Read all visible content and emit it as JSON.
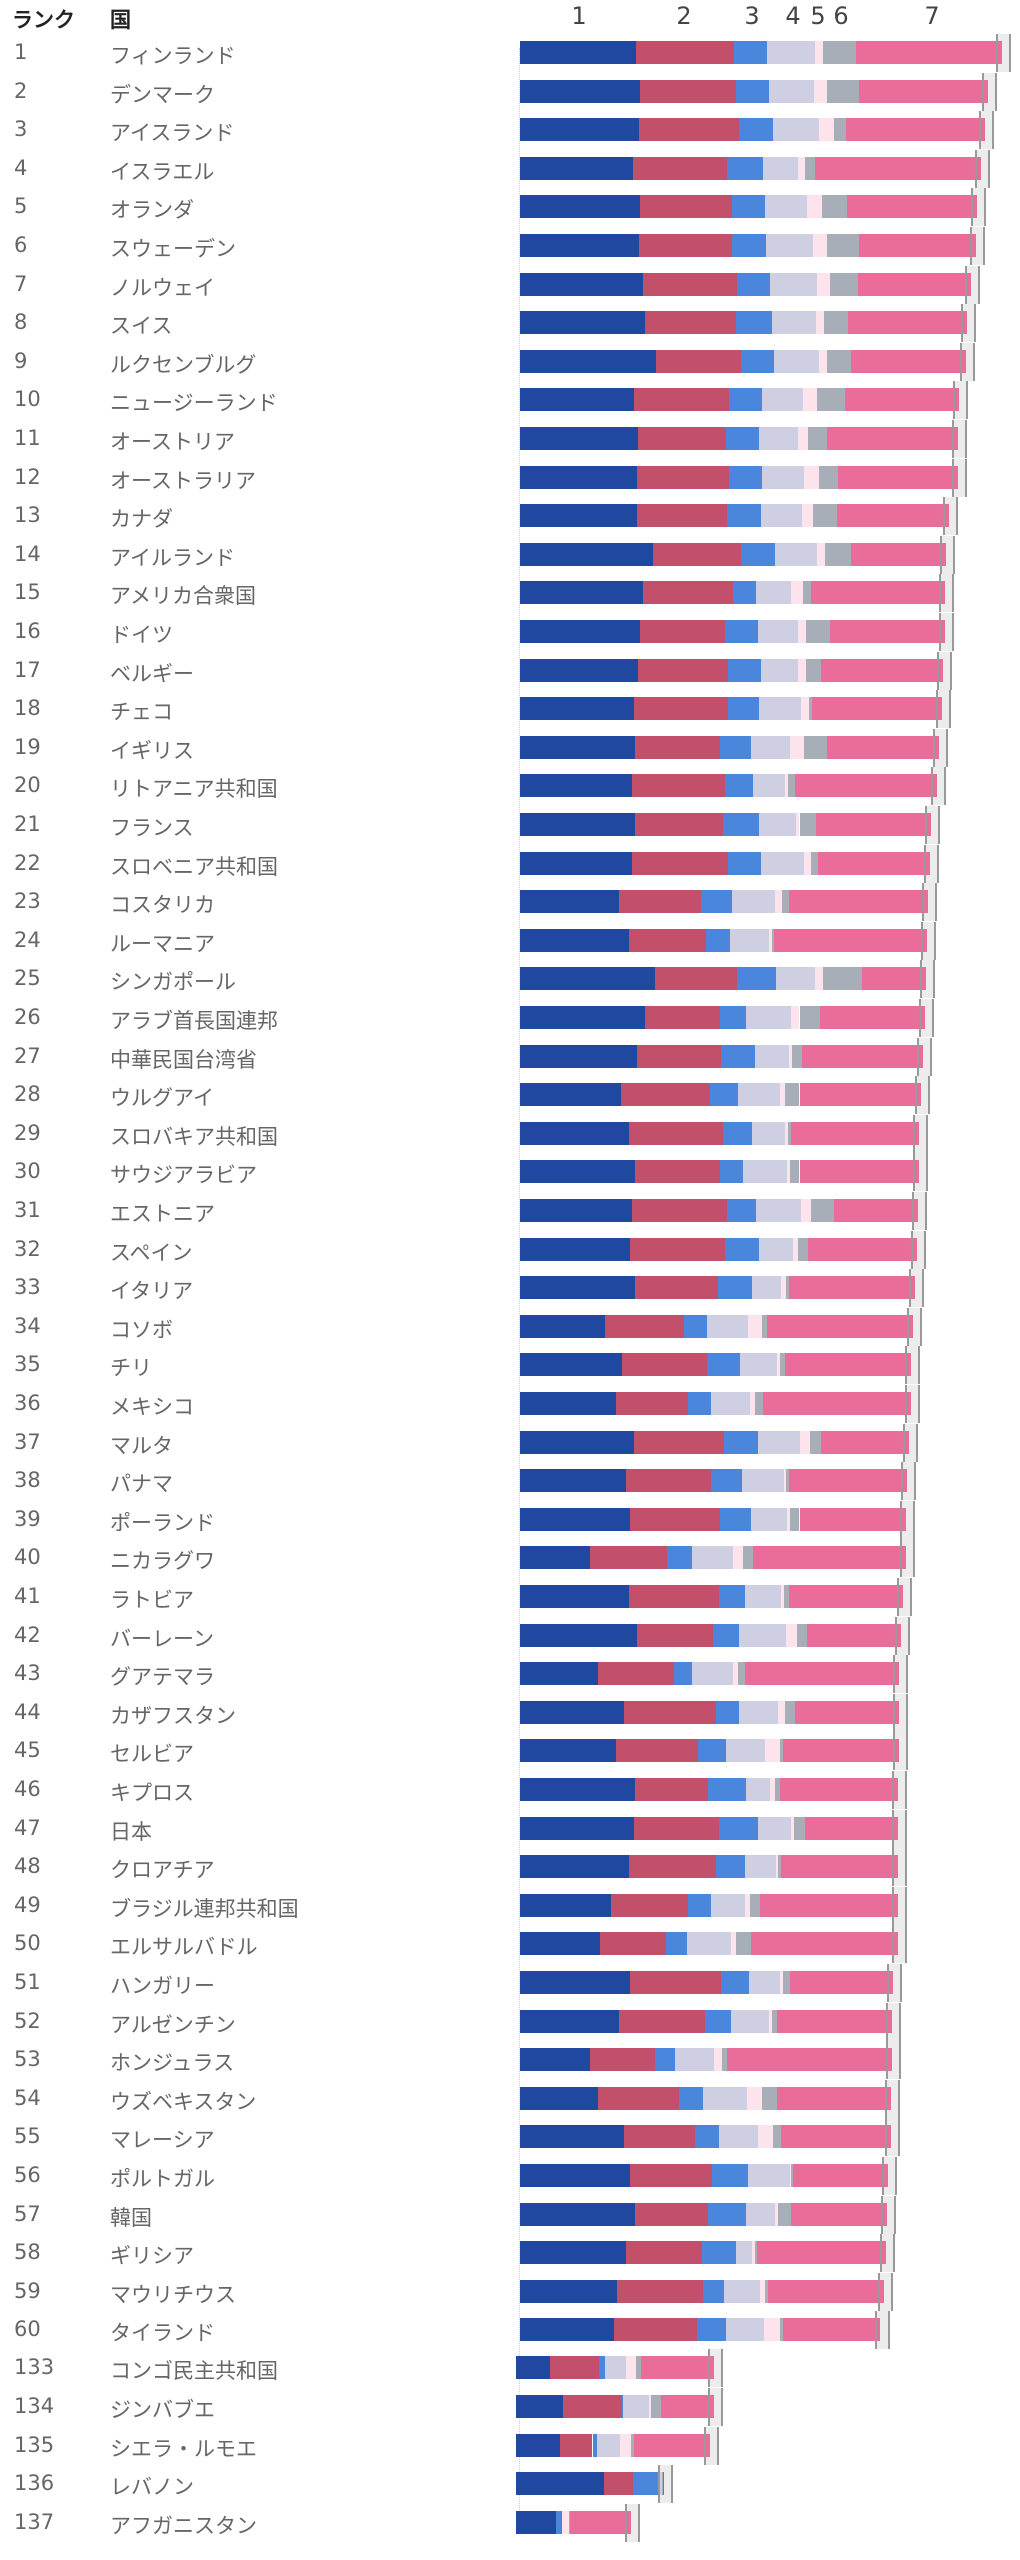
{
  "header": {
    "rank_label": "ランク",
    "country_label": "国"
  },
  "chart_data": {
    "type": "bar",
    "orientation": "horizontal-stacked",
    "title": "",
    "xlabel": "",
    "ylabel": "",
    "xlim": [
      0,
      8
    ],
    "legend_labels": [
      "1",
      "2",
      "3",
      "4",
      "5",
      "6",
      "7"
    ],
    "segment_colors": [
      "#2148a0",
      "#c2506a",
      "#4a86dc",
      "#cfcfe3",
      "#fde3ec",
      "#a8aeb8",
      "#ea6c9a"
    ],
    "segment_keys": [
      "gdp",
      "social",
      "health",
      "freedom",
      "generosity",
      "corruption",
      "dystopia_residual"
    ],
    "rows": [
      {
        "rank": "1",
        "country": "フィンランド",
        "score": 7.804,
        "v": [
          1.888,
          1.585,
          0.535,
          0.772,
          0.126,
          0.535
        ]
      },
      {
        "rank": "2",
        "country": "デンマーク",
        "score": 7.586,
        "v": [
          1.949,
          1.548,
          0.537,
          0.734,
          0.208,
          0.525
        ]
      },
      {
        "rank": "3",
        "country": "アイスランド",
        "score": 7.53,
        "v": [
          1.926,
          1.62,
          0.559,
          0.738,
          0.25,
          0.187
        ]
      },
      {
        "rank": "4",
        "country": "イスラエル",
        "score": 7.473,
        "v": [
          1.833,
          1.521,
          0.577,
          0.569,
          0.124,
          0.158
        ]
      },
      {
        "rank": "5",
        "country": "オランダ",
        "score": 7.403,
        "v": [
          1.942,
          1.488,
          0.545,
          0.672,
          0.251,
          0.394
        ]
      },
      {
        "rank": "6",
        "country": "スウェーデン",
        "score": 7.395,
        "v": [
          1.921,
          1.51,
          0.562,
          0.754,
          0.225,
          0.52
        ]
      },
      {
        "rank": "7",
        "country": "ノルウェイ",
        "score": 7.315,
        "v": [
          1.994,
          1.521,
          0.544,
          0.752,
          0.212,
          0.463
        ]
      },
      {
        "rank": "8",
        "country": "スイス",
        "score": 7.24,
        "v": [
          2.03,
          1.47,
          0.58,
          0.71,
          0.13,
          0.39
        ]
      },
      {
        "rank": "9",
        "country": "ルクセンブルグ",
        "score": 7.228,
        "v": [
          2.21,
          1.37,
          0.53,
          0.74,
          0.13,
          0.39
        ]
      },
      {
        "rank": "10",
        "country": "ニュージーランド",
        "score": 7.123,
        "v": [
          1.84,
          1.55,
          0.53,
          0.66,
          0.24,
          0.45
        ]
      },
      {
        "rank": "11",
        "country": "オーストリア",
        "score": 7.097,
        "v": [
          1.92,
          1.42,
          0.53,
          0.63,
          0.16,
          0.32
        ]
      },
      {
        "rank": "12",
        "country": "オーストラリア",
        "score": 7.095,
        "v": [
          1.89,
          1.5,
          0.53,
          0.68,
          0.24,
          0.32
        ]
      },
      {
        "rank": "13",
        "country": "カナダ",
        "score": 6.961,
        "v": [
          1.89,
          1.47,
          0.55,
          0.66,
          0.18,
          0.39
        ]
      },
      {
        "rank": "14",
        "country": "アイルランド",
        "score": 6.911,
        "v": [
          2.16,
          1.42,
          0.55,
          0.68,
          0.13,
          0.42
        ]
      },
      {
        "rank": "15",
        "country": "アメリカ合衆国",
        "score": 6.894,
        "v": [
          2.0,
          1.45,
          0.37,
          0.58,
          0.18,
          0.13
        ]
      },
      {
        "rank": "16",
        "country": "ドイツ",
        "score": 6.892,
        "v": [
          1.95,
          1.37,
          0.53,
          0.66,
          0.13,
          0.39
        ]
      },
      {
        "rank": "17",
        "country": "ベルギー",
        "score": 6.859,
        "v": [
          1.92,
          1.45,
          0.53,
          0.61,
          0.13,
          0.24
        ]
      },
      {
        "rank": "18",
        "country": "チェコ",
        "score": 6.845,
        "v": [
          1.84,
          1.53,
          0.5,
          0.68,
          0.13,
          0.05
        ]
      },
      {
        "rank": "19",
        "country": "イギリス",
        "score": 6.796,
        "v": [
          1.87,
          1.37,
          0.5,
          0.63,
          0.24,
          0.37
        ]
      },
      {
        "rank": "20",
        "country": "リトアニア共和国",
        "score": 6.763,
        "v": [
          1.82,
          1.5,
          0.45,
          0.53,
          0.05,
          0.11
        ]
      },
      {
        "rank": "21",
        "country": "フランス",
        "score": 6.661,
        "v": [
          1.87,
          1.42,
          0.58,
          0.61,
          0.05,
          0.26
        ]
      },
      {
        "rank": "22",
        "country": "スロベニア共和国",
        "score": 6.65,
        "v": [
          1.82,
          1.55,
          0.53,
          0.71,
          0.11,
          0.11
        ]
      },
      {
        "rank": "23",
        "country": "コスタリカ",
        "score": 6.609,
        "v": [
          1.61,
          1.32,
          0.5,
          0.71,
          0.11,
          0.11
        ]
      },
      {
        "rank": "24",
        "country": "ルーマニア",
        "score": 6.589,
        "v": [
          1.76,
          1.26,
          0.39,
          0.63,
          0.05,
          0.03
        ]
      },
      {
        "rank": "25",
        "country": "シンガポール",
        "score": 6.587,
        "v": [
          2.18,
          1.34,
          0.63,
          0.63,
          0.13,
          0.63
        ]
      },
      {
        "rank": "26",
        "country": "アラブ首長国連邦",
        "score": 6.571,
        "v": [
          2.03,
          1.21,
          0.42,
          0.74,
          0.13,
          0.34
        ]
      },
      {
        "rank": "27",
        "country": "中華民国台湾省",
        "score": 6.535,
        "v": [
          1.89,
          1.37,
          0.55,
          0.55,
          0.05,
          0.16
        ]
      },
      {
        "rank": "28",
        "country": "ウルグアイ",
        "score": 6.494,
        "v": [
          1.63,
          1.45,
          0.45,
          0.68,
          0.08,
          0.24
        ]
      },
      {
        "rank": "29",
        "country": "スロバキア共和国",
        "score": 6.469,
        "v": [
          1.76,
          1.53,
          0.47,
          0.53,
          0.05,
          0.05
        ]
      },
      {
        "rank": "30",
        "country": "サウジアラビア",
        "score": 6.463,
        "v": [
          1.87,
          1.37,
          0.37,
          0.71,
          0.05,
          0.16
        ]
      },
      {
        "rank": "31",
        "country": "エストニア",
        "score": 6.455,
        "v": [
          1.82,
          1.53,
          0.47,
          0.74,
          0.16,
          0.37
        ]
      },
      {
        "rank": "32",
        "country": "スペイン",
        "score": 6.436,
        "v": [
          1.79,
          1.53,
          0.55,
          0.55,
          0.08,
          0.16
        ]
      },
      {
        "rank": "33",
        "country": "イタリア",
        "score": 6.405,
        "v": [
          1.87,
          1.34,
          0.55,
          0.47,
          0.08,
          0.05
        ]
      },
      {
        "rank": "34",
        "country": "コソボ",
        "score": 6.368,
        "v": [
          1.37,
          1.29,
          0.37,
          0.66,
          0.24,
          0.08
        ]
      },
      {
        "rank": "35",
        "country": "チリ",
        "score": 6.334,
        "v": [
          1.66,
          1.37,
          0.53,
          0.61,
          0.05,
          0.08
        ]
      },
      {
        "rank": "36",
        "country": "メキシコ",
        "score": 6.33,
        "v": [
          1.55,
          1.18,
          0.37,
          0.63,
          0.08,
          0.13
        ]
      },
      {
        "rank": "37",
        "country": "マルタ",
        "score": 6.3,
        "v": [
          1.84,
          1.47,
          0.55,
          0.68,
          0.16,
          0.18
        ]
      },
      {
        "rank": "38",
        "country": "パナマ",
        "score": 6.265,
        "v": [
          1.71,
          1.39,
          0.5,
          0.68,
          0.03,
          0.05
        ]
      },
      {
        "rank": "39",
        "country": "ポーランド",
        "score": 6.26,
        "v": [
          1.79,
          1.45,
          0.5,
          0.58,
          0.05,
          0.16
        ]
      },
      {
        "rank": "40",
        "country": "ニカラグワ",
        "score": 6.259,
        "v": [
          1.13,
          1.26,
          0.39,
          0.68,
          0.16,
          0.16
        ]
      },
      {
        "rank": "41",
        "country": "ラトビア",
        "score": 6.213,
        "v": [
          1.76,
          1.47,
          0.42,
          0.58,
          0.05,
          0.08
        ]
      },
      {
        "rank": "42",
        "country": "バーレーン",
        "score": 6.173,
        "v": [
          1.89,
          1.24,
          0.42,
          0.76,
          0.18,
          0.16
        ]
      },
      {
        "rank": "43",
        "country": "グアテマラ",
        "score": 6.15,
        "v": [
          1.26,
          1.24,
          0.29,
          0.66,
          0.08,
          0.11
        ]
      },
      {
        "rank": "44",
        "country": "カザフスタン",
        "score": 6.144,
        "v": [
          1.68,
          1.5,
          0.37,
          0.63,
          0.11,
          0.16
        ]
      },
      {
        "rank": "45",
        "country": "セルビア",
        "score": 6.144,
        "v": [
          1.55,
          1.34,
          0.45,
          0.63,
          0.24,
          0.05
        ]
      },
      {
        "rank": "46",
        "country": "キプロス",
        "score": 6.13,
        "v": [
          1.87,
          1.18,
          0.61,
          0.39,
          0.08,
          0.08
        ]
      },
      {
        "rank": "47",
        "country": "日本",
        "score": 6.129,
        "v": [
          1.84,
          1.39,
          0.63,
          0.53,
          0.05,
          0.18
        ]
      },
      {
        "rank": "48",
        "country": "クロアチア",
        "score": 6.125,
        "v": [
          1.76,
          1.42,
          0.47,
          0.5,
          0.03,
          0.05
        ]
      },
      {
        "rank": "49",
        "country": "ブラジル連邦共和国",
        "score": 6.125,
        "v": [
          1.47,
          1.26,
          0.37,
          0.55,
          0.08,
          0.16
        ]
      },
      {
        "rank": "50",
        "country": "エルサルバドル",
        "score": 6.122,
        "v": [
          1.29,
          1.08,
          0.34,
          0.71,
          0.08,
          0.24
        ]
      },
      {
        "rank": "51",
        "country": "ハンガリー",
        "score": 6.041,
        "v": [
          1.79,
          1.47,
          0.45,
          0.5,
          0.05,
          0.11
        ]
      },
      {
        "rank": "52",
        "country": "アルゼンチン",
        "score": 6.024,
        "v": [
          1.61,
          1.39,
          0.42,
          0.61,
          0.05,
          0.08
        ]
      },
      {
        "rank": "53",
        "country": "ホンジュラス",
        "score": 6.023,
        "v": [
          1.13,
          1.05,
          0.34,
          0.63,
          0.13,
          0.08
        ]
      },
      {
        "rank": "54",
        "country": "ウズベキスタン",
        "score": 6.014,
        "v": [
          1.26,
          1.32,
          0.39,
          0.71,
          0.24,
          0.24
        ]
      },
      {
        "rank": "55",
        "country": "マレーシア",
        "score": 6.012,
        "v": [
          1.68,
          1.16,
          0.39,
          0.63,
          0.24,
          0.13
        ]
      },
      {
        "rank": "56",
        "country": "ポルトガル",
        "score": 5.968,
        "v": [
          1.79,
          1.32,
          0.58,
          0.68,
          0.03,
          0.03
        ]
      },
      {
        "rank": "57",
        "country": "韓国",
        "score": 5.951,
        "v": [
          1.87,
          1.18,
          0.61,
          0.47,
          0.05,
          0.21
        ]
      },
      {
        "rank": "58",
        "country": "ギリシア",
        "score": 5.931,
        "v": [
          1.71,
          1.24,
          0.55,
          0.26,
          0.05,
          0.03
        ]
      },
      {
        "rank": "59",
        "country": "マウリチウス",
        "score": 5.902,
        "v": [
          1.58,
          1.39,
          0.34,
          0.58,
          0.08,
          0.05
        ]
      },
      {
        "rank": "60",
        "country": "タイランド",
        "score": 5.843,
        "v": [
          1.53,
          1.34,
          0.47,
          0.61,
          0.26,
          0.05
        ]
      },
      {
        "rank": "133",
        "country": "コンゴ民主共和国",
        "score": 3.207,
        "v": [
          0.55,
          0.79,
          0.11,
          0.34,
          0.16,
          0.08
        ]
      },
      {
        "rank": "134",
        "country": "ジンバブエ",
        "score": 3.204,
        "v": [
          0.76,
          0.95,
          0.03,
          0.42,
          0.03,
          0.16
        ]
      },
      {
        "rank": "135",
        "country": "シエラ・ルモエ",
        "score": 3.138,
        "v": [
          0.71,
          0.53,
          0.08,
          0.37,
          0.18,
          0.05
        ]
      },
      {
        "rank": "136",
        "country": "レバノン",
        "score": 2.392,
        "v": [
          1.42,
          0.48,
          0.4,
          0.06,
          0.0,
          0.02
        ],
        "residual_color": "#d9552a"
      },
      {
        "rank": "137",
        "country": "アフガニスタン",
        "score": 1.859,
        "v": [
          0.65,
          0.0,
          0.1,
          0.0,
          0.11,
          0.01
        ]
      }
    ]
  }
}
